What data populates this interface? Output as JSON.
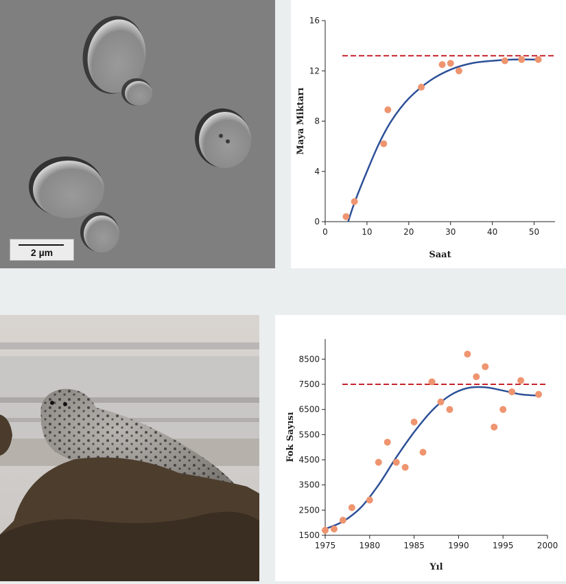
{
  "micrograph": {
    "scale_label": "2 µm"
  },
  "colors": {
    "curve": "#2c4f97",
    "points": "#ee9570",
    "capacity_line": "#c62127"
  },
  "chart_data": [
    {
      "type": "scatter",
      "title": "",
      "xlabel": "Saat",
      "ylabel": "Maya Miktarı",
      "xlim": [
        0,
        55
      ],
      "ylim": [
        0,
        16
      ],
      "xticks": [
        0,
        10,
        20,
        30,
        40,
        50
      ],
      "yticks": [
        0,
        4,
        8,
        12,
        16
      ],
      "points": [
        {
          "x": 5,
          "y": 0.4
        },
        {
          "x": 7,
          "y": 1.6
        },
        {
          "x": 14,
          "y": 6.2
        },
        {
          "x": 15,
          "y": 8.9
        },
        {
          "x": 23,
          "y": 10.7
        },
        {
          "x": 28,
          "y": 12.5
        },
        {
          "x": 30,
          "y": 12.6
        },
        {
          "x": 32,
          "y": 12.0
        },
        {
          "x": 43,
          "y": 12.8
        },
        {
          "x": 47,
          "y": 12.9
        },
        {
          "x": 51,
          "y": 12.9
        }
      ],
      "fit_curve": [
        [
          5.5,
          0
        ],
        [
          7,
          1.5
        ],
        [
          10,
          4.0
        ],
        [
          13,
          6.3
        ],
        [
          16,
          8.1
        ],
        [
          20,
          9.8
        ],
        [
          25,
          11.2
        ],
        [
          30,
          12.1
        ],
        [
          35,
          12.6
        ],
        [
          40,
          12.8
        ],
        [
          45,
          12.9
        ],
        [
          51,
          12.9
        ]
      ],
      "capacity": 13.2,
      "grid": false,
      "legend": "none"
    },
    {
      "type": "scatter",
      "title": "",
      "xlabel": "Yıl",
      "ylabel": "Fok Sayısı",
      "xlim": [
        1975,
        2000
      ],
      "ylim": [
        1500,
        9300
      ],
      "xticks": [
        1975,
        1980,
        1985,
        1990,
        1995,
        2000
      ],
      "yticks": [
        1500,
        2500,
        3500,
        4500,
        5500,
        6500,
        7500,
        8500
      ],
      "points": [
        {
          "x": 1975,
          "y": 1700
        },
        {
          "x": 1976,
          "y": 1750
        },
        {
          "x": 1977,
          "y": 2100
        },
        {
          "x": 1978,
          "y": 2600
        },
        {
          "x": 1980,
          "y": 2900
        },
        {
          "x": 1981,
          "y": 4400
        },
        {
          "x": 1982,
          "y": 5200
        },
        {
          "x": 1983,
          "y": 4400
        },
        {
          "x": 1984,
          "y": 4200
        },
        {
          "x": 1985,
          "y": 6000
        },
        {
          "x": 1986,
          "y": 4800
        },
        {
          "x": 1987,
          "y": 7600
        },
        {
          "x": 1988,
          "y": 6800
        },
        {
          "x": 1989,
          "y": 6500
        },
        {
          "x": 1991,
          "y": 8700
        },
        {
          "x": 1992,
          "y": 7800
        },
        {
          "x": 1993,
          "y": 8200
        },
        {
          "x": 1994,
          "y": 5800
        },
        {
          "x": 1995,
          "y": 6500
        },
        {
          "x": 1996,
          "y": 7200
        },
        {
          "x": 1997,
          "y": 7650
        },
        {
          "x": 1999,
          "y": 7100
        }
      ],
      "fit_curve": [
        [
          1975,
          1750
        ],
        [
          1977,
          2050
        ],
        [
          1979,
          2600
        ],
        [
          1981,
          3500
        ],
        [
          1983,
          4600
        ],
        [
          1985,
          5600
        ],
        [
          1987,
          6450
        ],
        [
          1989,
          7050
        ],
        [
          1991,
          7350
        ],
        [
          1993,
          7380
        ],
        [
          1995,
          7250
        ],
        [
          1997,
          7100
        ],
        [
          1999,
          7050
        ]
      ],
      "capacity": 7500,
      "grid": false,
      "legend": "none"
    }
  ]
}
